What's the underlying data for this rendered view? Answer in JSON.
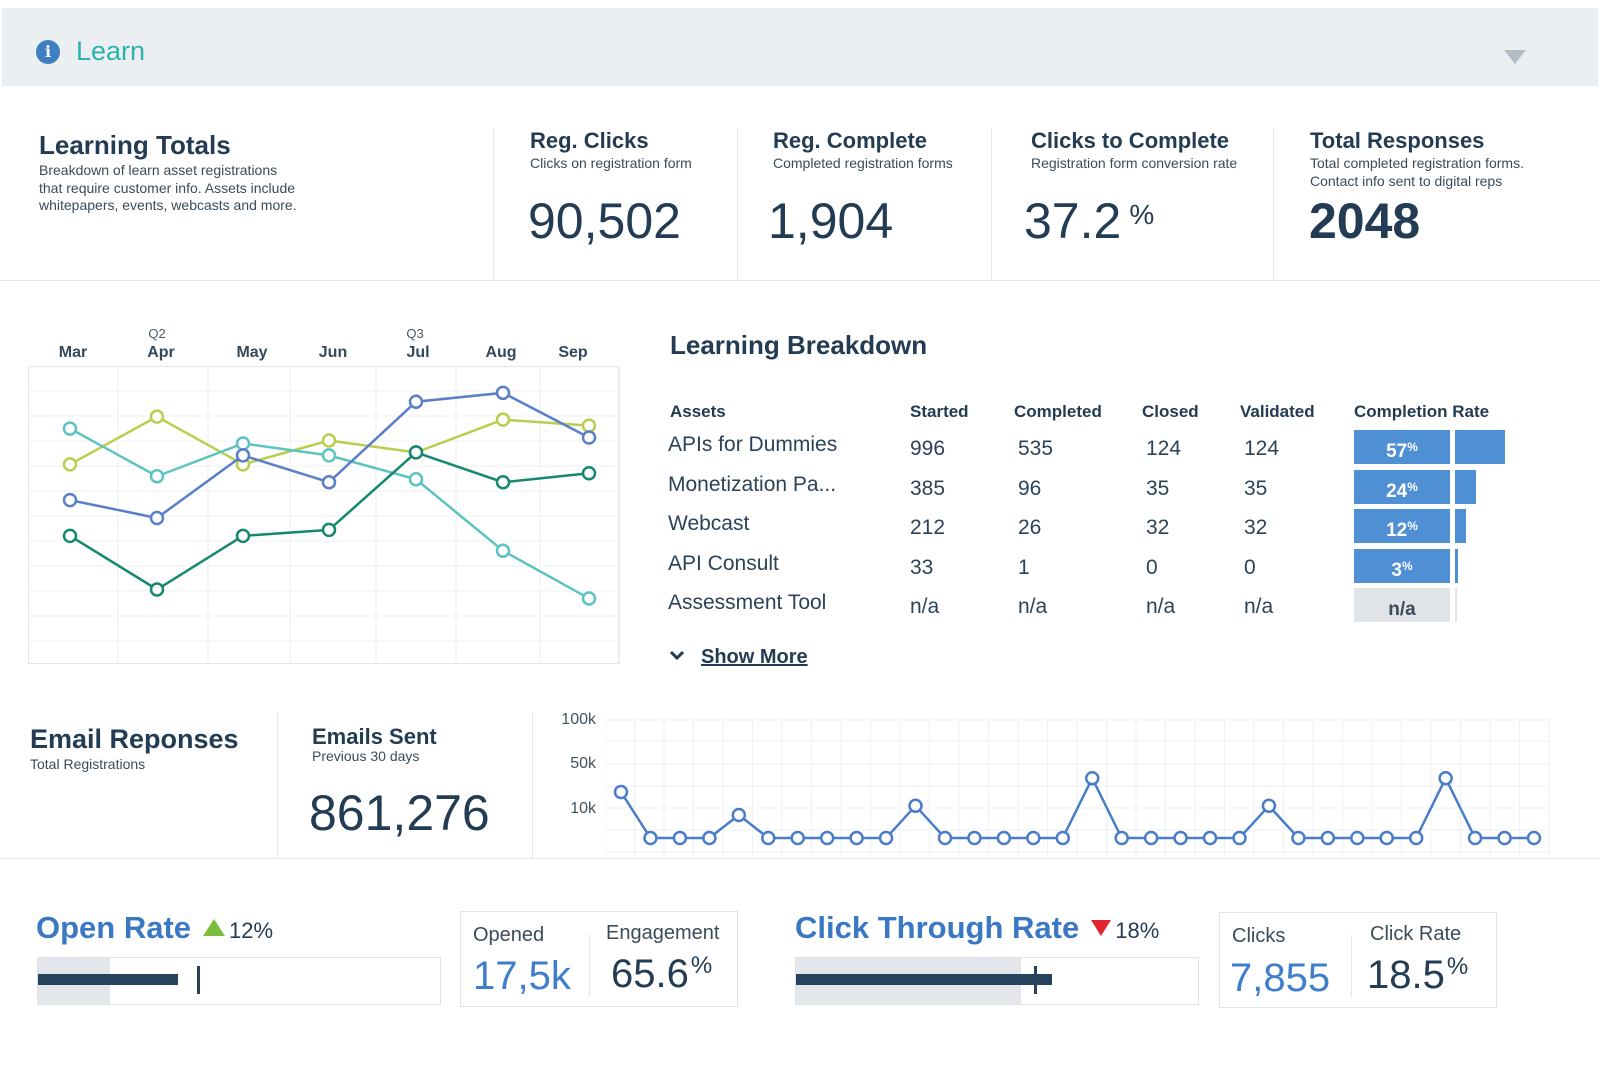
{
  "header": {
    "title": "Learn",
    "info_icon": "info-icon",
    "toggle_icon": "triangle-down-icon"
  },
  "learning_totals": {
    "title": "Learning Totals",
    "description_lines": [
      "Breakdown of learn asset registrations",
      "that require customer info. Assets include",
      "whitepapers, events, webcasts and more."
    ]
  },
  "kpis": [
    {
      "title": "Reg. Clicks",
      "subtitle_lines": [
        "Clicks on registration form"
      ],
      "value": "90,502",
      "unit": ""
    },
    {
      "title": "Reg. Complete",
      "subtitle_lines": [
        "Completed registration forms"
      ],
      "value": "1,904",
      "unit": ""
    },
    {
      "title": "Clicks to Complete",
      "subtitle_lines": [
        "Registration form conversion rate"
      ],
      "value": "37.2",
      "unit": "%"
    },
    {
      "title": "Total Responses",
      "subtitle_lines": [
        "Total completed registration forms.",
        "Contact info sent to digital reps"
      ],
      "value": "2048",
      "unit": ""
    }
  ],
  "trend_chart": {
    "months": [
      "Mar",
      "Apr",
      "May",
      "Jun",
      "Jul",
      "Aug",
      "Sep"
    ],
    "quarters": [
      {
        "label": "Q2",
        "month": "Apr"
      },
      {
        "label": "Q3",
        "month": "Jul"
      }
    ],
    "colors": {
      "yellow": "#b8cf4e",
      "teal": "#5cc3c0",
      "blue": "#5a7fc8",
      "green": "#15886f"
    }
  },
  "chart_data": [
    {
      "type": "line",
      "x": [
        "Mar",
        "Apr",
        "May",
        "Jun",
        "Jul",
        "Aug",
        "Sep"
      ],
      "series": [
        {
          "color": "#b8cf4e",
          "values": [
            67,
            83,
            67,
            75,
            71,
            82,
            80
          ]
        },
        {
          "color": "#5cc3c0",
          "values": [
            79,
            63,
            74,
            70,
            62,
            38,
            22
          ]
        },
        {
          "color": "#5a7fc8",
          "values": [
            55,
            49,
            70,
            61,
            88,
            91,
            76
          ]
        },
        {
          "color": "#15886f",
          "values": [
            43,
            25,
            43,
            45,
            71,
            61,
            64
          ]
        }
      ],
      "ylim": [
        0,
        100
      ],
      "grid": true
    },
    {
      "type": "line",
      "yticks": [
        "100k",
        "50k",
        "10k"
      ],
      "series": [
        {
          "color": "#4a7dc8",
          "values": [
            10,
            0,
            0,
            0,
            5,
            0,
            0,
            0,
            0,
            0,
            7,
            0,
            0,
            0,
            0,
            0,
            13,
            0,
            0,
            0,
            0,
            0,
            7,
            0,
            0,
            0,
            0,
            0,
            13,
            0,
            0,
            0
          ]
        }
      ],
      "grid": true
    }
  ],
  "breakdown": {
    "title": "Learning Breakdown",
    "columns": [
      "Assets",
      "Started",
      "Completed",
      "Closed",
      "Validated",
      "Completion Rate"
    ],
    "rows": [
      {
        "asset": "APIs for Dummies",
        "started": "996",
        "completed": "535",
        "closed": "124",
        "validated": "124",
        "rate": "57",
        "rate_unit": "%",
        "rate_value": 57
      },
      {
        "asset": "Monetization Pa...",
        "started": "385",
        "completed": "96",
        "closed": "35",
        "validated": "35",
        "rate": "24",
        "rate_unit": "%",
        "rate_value": 24
      },
      {
        "asset": "Webcast",
        "started": "212",
        "completed": "26",
        "closed": "32",
        "validated": "32",
        "rate": "12",
        "rate_unit": "%",
        "rate_value": 12
      },
      {
        "asset": "API Consult",
        "started": "33",
        "completed": "1",
        "closed": "0",
        "validated": "0",
        "rate": "3",
        "rate_unit": "%",
        "rate_value": 3
      },
      {
        "asset": "Assessment Tool",
        "started": "n/a",
        "completed": "n/a",
        "closed": "n/a",
        "validated": "n/a",
        "rate": "n/a",
        "rate_unit": "",
        "rate_value": 0
      }
    ],
    "show_more": "Show More",
    "rate_color": "#4f8fd3",
    "na_color": "#e0e4e8"
  },
  "email": {
    "title": "Email Reponses",
    "subtitle": "Total Registrations",
    "sent_title": "Emails Sent",
    "sent_subtitle": "Previous 30 days",
    "sent_value": "861,276"
  },
  "open_rate": {
    "title": "Open Rate",
    "delta": "12",
    "delta_unit": "%",
    "direction": "up",
    "progress": 0.35,
    "opened_label": "Opened",
    "opened_value": "17,5k",
    "engagement_label": "Engagement",
    "engagement_value": "65.6",
    "engagement_unit": "%"
  },
  "ctr": {
    "title": "Click Through Rate",
    "delta": "18",
    "delta_unit": "%",
    "direction": "down",
    "progress": 0.64,
    "clicks_label": "Clicks",
    "clicks_value": "7,855",
    "rate_label": "Click Rate",
    "rate_value": "18.5",
    "rate_unit": "%"
  }
}
